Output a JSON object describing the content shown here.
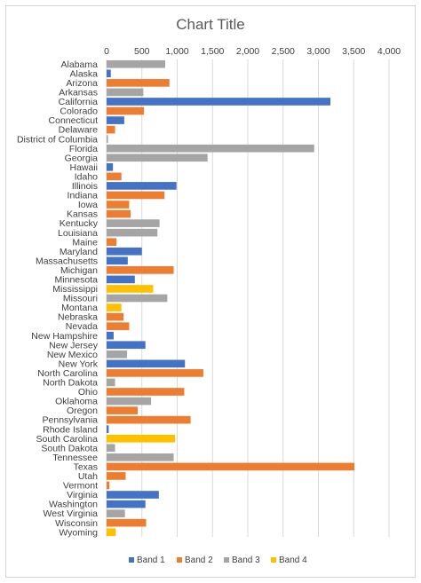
{
  "chart_data": {
    "type": "bar",
    "orientation": "horizontal",
    "title": "Chart Title",
    "xlabel": "",
    "ylabel": "",
    "xlim": [
      0,
      4000
    ],
    "x_ticks": [
      "0",
      "500",
      "1,000",
      "1,500",
      "2,000",
      "2,500",
      "3,000",
      "3,500",
      "4,000"
    ],
    "grid": true,
    "legend_position": "bottom",
    "series_colors": {
      "Band 1": "#4472c4",
      "Band 2": "#ed7d31",
      "Band 3": "#a5a5a5",
      "Band 4": "#ffc000"
    },
    "legend": [
      "Band 1",
      "Band 2",
      "Band 3",
      "Band 4"
    ],
    "categories": [
      {
        "name": "Alabama",
        "series": "Band 3",
        "value": 830
      },
      {
        "name": "Alaska",
        "series": "Band 1",
        "value": 60
      },
      {
        "name": "Arizona",
        "series": "Band 2",
        "value": 890
      },
      {
        "name": "Arkansas",
        "series": "Band 3",
        "value": 520
      },
      {
        "name": "California",
        "series": "Band 1",
        "value": 3170
      },
      {
        "name": "Colorado",
        "series": "Band 2",
        "value": 530
      },
      {
        "name": "Connecticut",
        "series": "Band 1",
        "value": 250
      },
      {
        "name": "Delaware",
        "series": "Band 2",
        "value": 120
      },
      {
        "name": "District of Columbia",
        "series": "Band 3",
        "value": 20
      },
      {
        "name": "Florida",
        "series": "Band 3",
        "value": 2940
      },
      {
        "name": "Georgia",
        "series": "Band 3",
        "value": 1430
      },
      {
        "name": "Hawaii",
        "series": "Band 1",
        "value": 90
      },
      {
        "name": "Idaho",
        "series": "Band 2",
        "value": 210
      },
      {
        "name": "Illinois",
        "series": "Band 1",
        "value": 990
      },
      {
        "name": "Indiana",
        "series": "Band 2",
        "value": 820
      },
      {
        "name": "Iowa",
        "series": "Band 2",
        "value": 320
      },
      {
        "name": "Kansas",
        "series": "Band 2",
        "value": 340
      },
      {
        "name": "Kentucky",
        "series": "Band 3",
        "value": 750
      },
      {
        "name": "Louisiana",
        "series": "Band 3",
        "value": 720
      },
      {
        "name": "Maine",
        "series": "Band 2",
        "value": 140
      },
      {
        "name": "Maryland",
        "series": "Band 1",
        "value": 500
      },
      {
        "name": "Massachusetts",
        "series": "Band 1",
        "value": 300
      },
      {
        "name": "Michigan",
        "series": "Band 2",
        "value": 950
      },
      {
        "name": "Minnesota",
        "series": "Band 1",
        "value": 400
      },
      {
        "name": "Mississippi",
        "series": "Band 4",
        "value": 660
      },
      {
        "name": "Missouri",
        "series": "Band 3",
        "value": 860
      },
      {
        "name": "Montana",
        "series": "Band 4",
        "value": 210
      },
      {
        "name": "Nebraska",
        "series": "Band 2",
        "value": 240
      },
      {
        "name": "Nevada",
        "series": "Band 2",
        "value": 320
      },
      {
        "name": "New Hampshire",
        "series": "Band 1",
        "value": 100
      },
      {
        "name": "New Jersey",
        "series": "Band 1",
        "value": 550
      },
      {
        "name": "New Mexico",
        "series": "Band 3",
        "value": 290
      },
      {
        "name": "New York",
        "series": "Band 1",
        "value": 1110
      },
      {
        "name": "North Carolina",
        "series": "Band 2",
        "value": 1370
      },
      {
        "name": "North Dakota",
        "series": "Band 3",
        "value": 120
      },
      {
        "name": "Ohio",
        "series": "Band 2",
        "value": 1100
      },
      {
        "name": "Oklahoma",
        "series": "Band 3",
        "value": 630
      },
      {
        "name": "Oregon",
        "series": "Band 2",
        "value": 440
      },
      {
        "name": "Pennsylvania",
        "series": "Band 2",
        "value": 1190
      },
      {
        "name": "Rhode Island",
        "series": "Band 1",
        "value": 30
      },
      {
        "name": "South Carolina",
        "series": "Band 4",
        "value": 970
      },
      {
        "name": "South Dakota",
        "series": "Band 3",
        "value": 120
      },
      {
        "name": "Tennessee",
        "series": "Band 3",
        "value": 950
      },
      {
        "name": "Texas",
        "series": "Band 2",
        "value": 3510
      },
      {
        "name": "Utah",
        "series": "Band 2",
        "value": 270
      },
      {
        "name": "Vermont",
        "series": "Band 2",
        "value": 40
      },
      {
        "name": "Virginia",
        "series": "Band 1",
        "value": 740
      },
      {
        "name": "Washington",
        "series": "Band 1",
        "value": 550
      },
      {
        "name": "West Virginia",
        "series": "Band 3",
        "value": 260
      },
      {
        "name": "Wisconsin",
        "series": "Band 2",
        "value": 560
      },
      {
        "name": "Wyoming",
        "series": "Band 4",
        "value": 130
      }
    ]
  }
}
